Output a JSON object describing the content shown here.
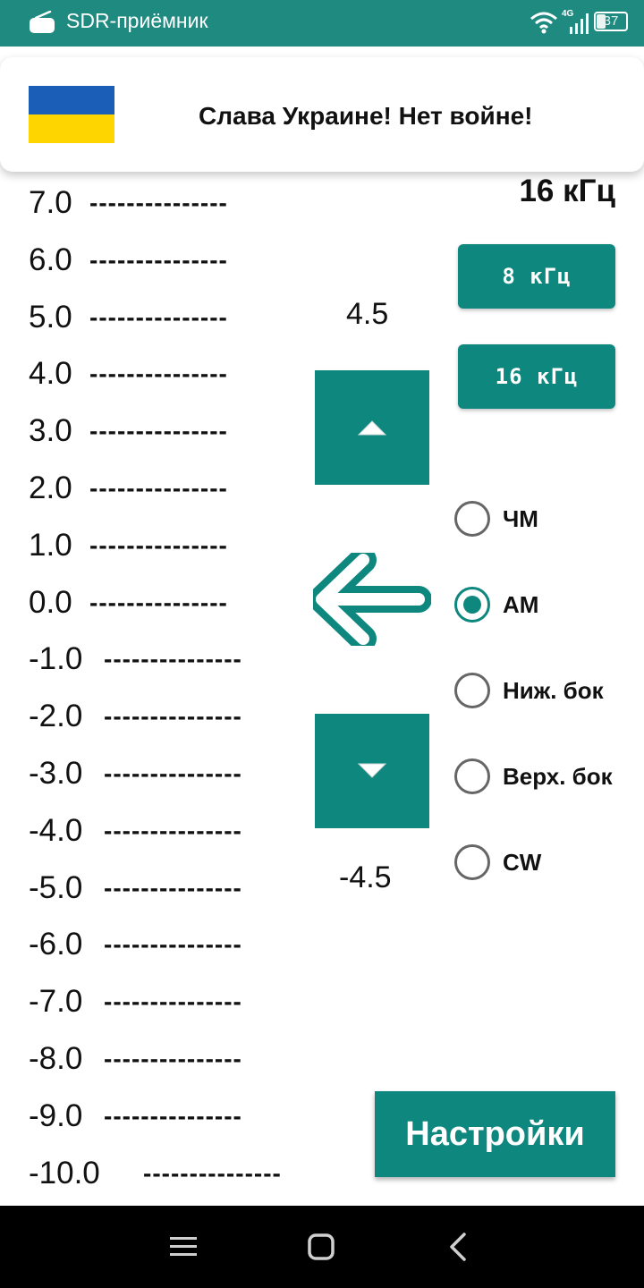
{
  "status_bar": {
    "app_title": "SDR-приёмник",
    "network": "4G",
    "battery": "37"
  },
  "banner": {
    "message": "Слава Украине! Нет войне!",
    "flag_colors": [
      "#1a5eb8",
      "#ffd500"
    ]
  },
  "scale": {
    "values": [
      "7.0",
      "6.0",
      "5.0",
      "4.0",
      "3.0",
      "2.0",
      "1.0",
      "0.0",
      "-1.0",
      "-2.0",
      "-3.0",
      "-4.0",
      "-5.0",
      "-6.0",
      "-7.0",
      "-8.0",
      "-9.0",
      "-10.0"
    ],
    "dashes": "---------------",
    "upper_label": "4.5",
    "lower_label": "-4.5"
  },
  "controls": {
    "up_icon": "chevron-up-icon",
    "down_icon": "chevron-down-icon",
    "pointer_icon": "arrow-left-icon",
    "frequency": "16 кГц",
    "bandwidth_buttons": [
      "8 кГц",
      "16 кГц"
    ],
    "modes": [
      {
        "label": "ЧМ",
        "selected": false
      },
      {
        "label": "АМ",
        "selected": true
      },
      {
        "label": "Ниж. бок",
        "selected": false
      },
      {
        "label": "Верх. бок",
        "selected": false
      },
      {
        "label": "CW",
        "selected": false
      }
    ],
    "settings_label": "Настройки"
  },
  "nav_bar": {
    "icons": [
      "menu-icon",
      "home-icon",
      "back-icon"
    ]
  },
  "colors": {
    "accent": "#0e877f",
    "status_bar": "#1f8a80"
  }
}
